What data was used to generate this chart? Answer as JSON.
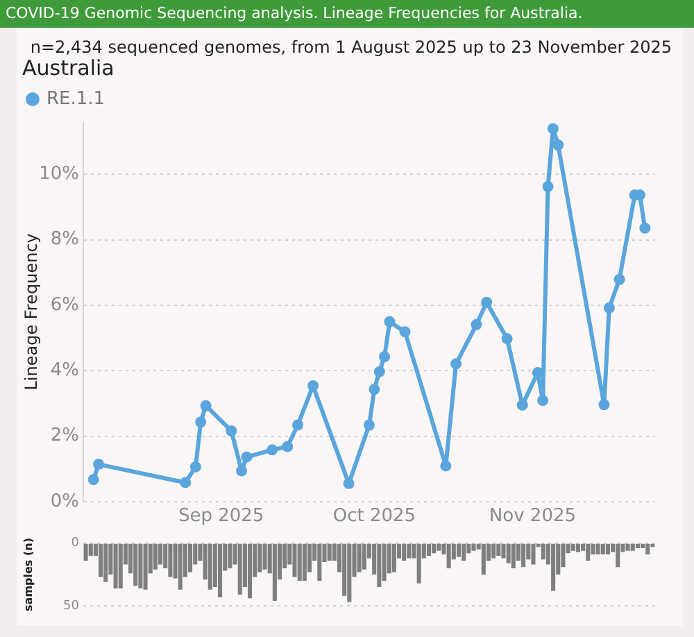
{
  "chart_data": [
    {
      "type": "line",
      "title": "Australia",
      "subtitle": "n=2,434 sequenced genomes, from 1 August 2025 up to 23 November 2025",
      "annotations": [
        "COVID-19 Genomic Sequencing analysis. Lineage Frequencies for Australia."
      ],
      "ylabel": "Lineage Frequency",
      "x": [
        "2025-08-07",
        "2025-08-08",
        "2025-08-25",
        "2025-08-27",
        "2025-08-28",
        "2025-08-29",
        "2025-09-03",
        "2025-09-05",
        "2025-09-06",
        "2025-09-11",
        "2025-09-14",
        "2025-09-16",
        "2025-09-19",
        "2025-09-26",
        "2025-09-30",
        "2025-10-01",
        "2025-10-02",
        "2025-10-03",
        "2025-10-04",
        "2025-10-07",
        "2025-10-15",
        "2025-10-17",
        "2025-10-21",
        "2025-10-23",
        "2025-10-27",
        "2025-10-30",
        "2025-11-02",
        "2025-11-03",
        "2025-11-04",
        "2025-11-05",
        "2025-11-06",
        "2025-11-15",
        "2025-11-16",
        "2025-11-18",
        "2025-11-21",
        "2025-11-22",
        "2025-11-23"
      ],
      "series": [
        {
          "name": "RE.1.1",
          "color": "#5aa5dc",
          "values": [
            0.67,
            1.14,
            0.58,
            1.06,
            2.43,
            2.93,
            2.16,
            0.94,
            1.36,
            1.58,
            1.68,
            2.34,
            3.54,
            0.55,
            2.34,
            3.43,
            3.97,
            4.43,
            5.5,
            5.19,
            1.09,
            4.21,
            5.41,
            6.09,
            4.98,
            2.95,
            3.94,
            3.09,
            9.63,
            11.4,
            10.9,
            2.96,
            5.92,
            6.79,
            9.37,
            9.37,
            8.36
          ]
        }
      ],
      "xlim": [
        "2025-08-05",
        "2025-11-25"
      ],
      "xticks": [
        {
          "value": "2025-09-01",
          "label": "Sep 2025"
        },
        {
          "value": "2025-10-01",
          "label": "Oct 2025"
        },
        {
          "value": "2025-11-01",
          "label": "Nov 2025"
        }
      ],
      "ylim": [
        0,
        11.6
      ],
      "yticks": [
        {
          "value": 0,
          "label": "0%"
        },
        {
          "value": 2,
          "label": "2%"
        },
        {
          "value": 4,
          "label": "4%"
        },
        {
          "value": 6,
          "label": "6%"
        },
        {
          "value": 8,
          "label": "8%"
        },
        {
          "value": 10,
          "label": "10%"
        }
      ],
      "grid": "y",
      "legend": "top left",
      "marker": "circle",
      "line_style": "solid"
    },
    {
      "type": "bar",
      "ylabel": "samples (n)",
      "categories": [
        null,
        null,
        null,
        null,
        null,
        null,
        null,
        null,
        null,
        null,
        null,
        null,
        null,
        null,
        null,
        null,
        null,
        null,
        null,
        null,
        null,
        null,
        null,
        null,
        null,
        null,
        null,
        null,
        null,
        null,
        null,
        null,
        null,
        null,
        null,
        null,
        null,
        null,
        null,
        null,
        null,
        null,
        null,
        null,
        null,
        null,
        null,
        null,
        null,
        null,
        null,
        null,
        null,
        null,
        null,
        null,
        null,
        null,
        null,
        null,
        null,
        null,
        null,
        null,
        null,
        null,
        null,
        null,
        null,
        null,
        null,
        null,
        null,
        null,
        null,
        null,
        null,
        null,
        null,
        null,
        null,
        null,
        null,
        null,
        null,
        null,
        null,
        null,
        null,
        null,
        null,
        null,
        null,
        null,
        null,
        null,
        null,
        null,
        null,
        null,
        null,
        null,
        null,
        null,
        null,
        null,
        null,
        null,
        null,
        null,
        null,
        null,
        null,
        null,
        null
      ],
      "values": [
        14,
        10,
        10,
        27,
        31,
        25,
        36,
        36,
        17,
        24,
        34,
        36,
        37,
        24,
        21,
        17,
        20,
        27,
        28,
        37,
        27,
        23,
        17,
        14,
        29,
        37,
        35,
        43,
        22,
        20,
        17,
        41,
        35,
        44,
        27,
        23,
        21,
        24,
        46,
        29,
        20,
        17,
        27,
        30,
        30,
        23,
        14,
        30,
        15,
        14,
        14,
        23,
        42,
        47,
        27,
        23,
        21,
        12,
        25,
        35,
        30,
        24,
        23,
        12,
        14,
        12,
        12,
        32,
        12,
        10,
        8,
        6,
        9,
        20,
        13,
        11,
        14,
        8,
        6,
        5,
        25,
        14,
        12,
        10,
        12,
        16,
        20,
        14,
        19,
        13,
        17,
        3,
        13,
        17,
        38,
        25,
        19,
        8,
        6,
        7,
        6,
        14,
        9,
        9,
        9,
        9,
        7,
        19,
        7,
        6,
        6,
        4,
        4,
        9,
        3
      ],
      "color": "#7f7f7f",
      "ylim": [
        50,
        0
      ],
      "yticks": [
        0,
        50
      ],
      "grid": "y",
      "tick_labels": "y"
    }
  ]
}
